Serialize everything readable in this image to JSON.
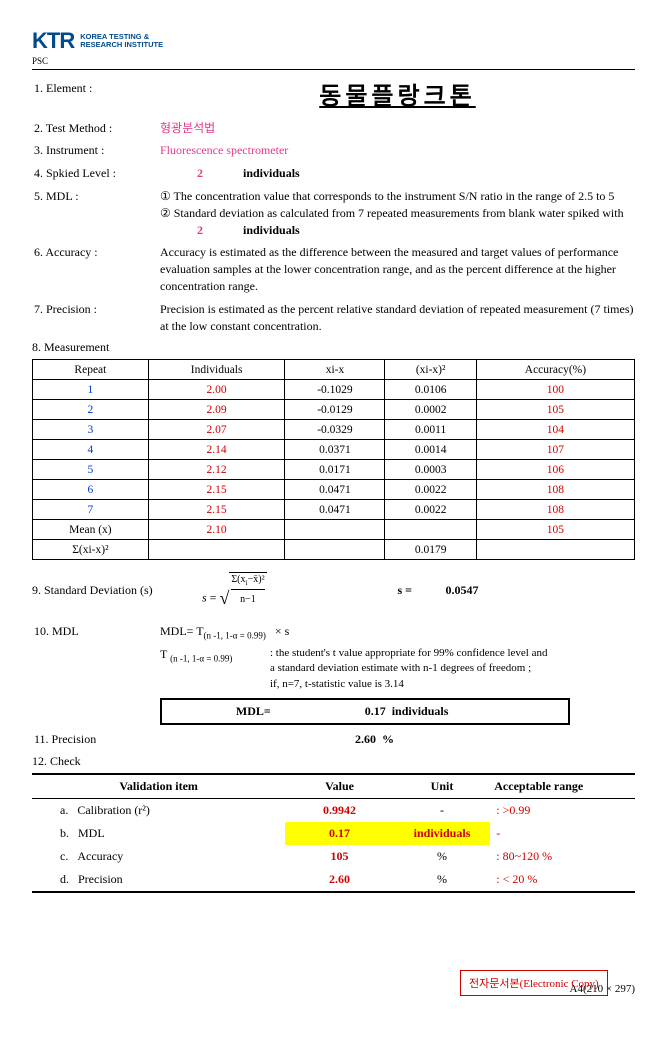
{
  "header": {
    "logo": "KTR",
    "sub1": "KOREA TESTING &",
    "sub2": "RESEARCH INSTITUTE",
    "psc": "PSC"
  },
  "s1": {
    "lbl": "1. Element :",
    "title": "동물플랑크톤"
  },
  "s2": {
    "lbl": "2. Test Method :",
    "val": "형광분석법"
  },
  "s3": {
    "lbl": "3. Instrument  :",
    "val": "Fluorescence spectrometer"
  },
  "s4": {
    "lbl": "4. Spkied Level :",
    "num": "2",
    "unit": "individuals"
  },
  "s5": {
    "lbl": "5. MDL :",
    "l1": "① The concentration value that corresponds to the instrument S/N ratio in the range of 2.5 to 5",
    "l2a": "② Standard deviation as calculated from 7 repeated measurements from blank water spiked with",
    "num": "2",
    "unit": "individuals"
  },
  "s6": {
    "lbl": "6. Accuracy :",
    "l1": "Accuracy is estimated as the difference between the measured and target values of performance",
    "l2": "evaluation samples at the lower concentration range, and as the percent difference at the higher",
    "l3": "concentration range."
  },
  "s7": {
    "lbl": "7. Precision :",
    "l1": "Precision is estimated as the percent relative standard deviation of repeated measurement (7 times)",
    "l2": "at the low constant concentration."
  },
  "s8": {
    "lbl": "8. Measurement",
    "h": [
      "Repeat",
      "Individuals",
      "xi-x",
      "(xi-x)²",
      "Accuracy(%)"
    ],
    "rows": [
      {
        "r": "1",
        "ind": "2.00",
        "xix": "-0.1029",
        "sq": "0.0106",
        "acc": "100"
      },
      {
        "r": "2",
        "ind": "2.09",
        "xix": "-0.0129",
        "sq": "0.0002",
        "acc": "105"
      },
      {
        "r": "3",
        "ind": "2.07",
        "xix": "-0.0329",
        "sq": "0.0011",
        "acc": "104"
      },
      {
        "r": "4",
        "ind": "2.14",
        "xix": "0.0371",
        "sq": "0.0014",
        "acc": "107"
      },
      {
        "r": "5",
        "ind": "2.12",
        "xix": "0.0171",
        "sq": "0.0003",
        "acc": "106"
      },
      {
        "r": "6",
        "ind": "2.15",
        "xix": "0.0471",
        "sq": "0.0022",
        "acc": "108"
      },
      {
        "r": "7",
        "ind": "2.15",
        "xix": "0.0471",
        "sq": "0.0022",
        "acc": "108"
      }
    ],
    "mean_lbl": "Mean (x)",
    "mean_ind": "2.10",
    "mean_acc": "105",
    "sum_lbl": "Σ(xi-x)²",
    "sum_val": "0.0179"
  },
  "s9": {
    "lbl": "9. Standard Deviation (s)",
    "seq": "s =",
    "sval": "0.0547"
  },
  "s10": {
    "lbl": "10. MDL",
    "f1a": "MDL=   T",
    "f1b": "(n -1,  1-α = 0.99)",
    "f1c": "×    s",
    "f2a": "T ",
    "f2b": "(n -1,  1-α  = 0.99)",
    "exp1": ": the student's t value appropriate for 99% confidence level and",
    "exp2": "a standard deviation estimate with n-1 degrees of freedom ;",
    "exp3": "if, n=7, t-statistic value is 3.14",
    "box_l": "MDL=",
    "box_n": "0.17",
    "box_u": "individuals"
  },
  "s11": {
    "lbl": "11. Precision",
    "val": "2.60",
    "unit": "%"
  },
  "s12": {
    "lbl": "12. Check",
    "h": [
      "Validation item",
      "Value",
      "Unit",
      "Acceptable range"
    ],
    "rows": [
      {
        "k": "a.",
        "item": "Calibration (r²)",
        "val": "0.9942",
        "unit": "-",
        "rng": ": >0.99",
        "hl": false,
        "red": true
      },
      {
        "k": "b.",
        "item": "MDL",
        "val": "0.17",
        "unit": "individuals",
        "rng": "-",
        "hl": true,
        "red": true
      },
      {
        "k": "c.",
        "item": "Accuracy",
        "val": "105",
        "unit": "%",
        "rng": ": 80~120 %",
        "hl": false,
        "red": true
      },
      {
        "k": "d.",
        "item": "Precision",
        "val": "2.60",
        "unit": "%",
        "rng": ": < 20 %",
        "hl": false,
        "red": true
      }
    ]
  },
  "stamp": "전자문서본(Electronic Copy)",
  "footer": "A4(210 × 297)"
}
